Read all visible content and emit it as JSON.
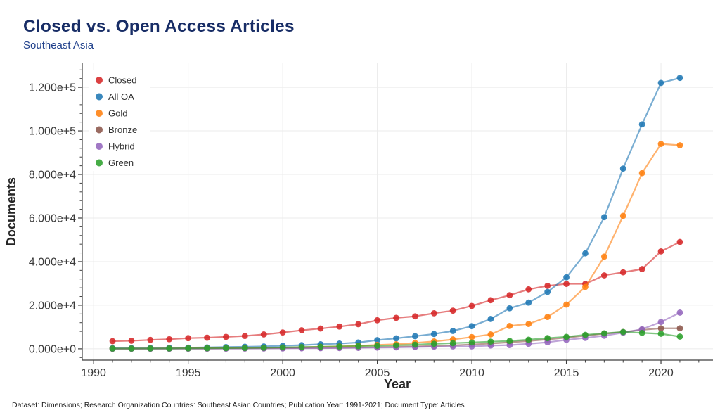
{
  "header": {
    "title": "Closed vs. Open Access Articles",
    "subtitle": "Southeast Asia"
  },
  "footer": {
    "note": "Dataset: Dimensions; Research Organization Countries: Southeast Asian Countries; Publication Year: 1991-2021; Document Type: Articles"
  },
  "colors": {
    "title_text": "#182d66",
    "subtitle_text": "#21418c",
    "grid": "#ebebeb",
    "spine": "#3f3f3f",
    "tick_label": "#3a3a3a",
    "axis_title": "#262626",
    "legend_text": "#333333",
    "background": "#ffffff"
  },
  "chart_data": {
    "type": "line",
    "title": "Closed vs. Open Access Articles",
    "subtitle": "Southeast Asia",
    "xlabel": "Year",
    "ylabel": "Documents",
    "grid": true,
    "legend_position": "top-left",
    "legend_entries": [
      "Closed",
      "All OA",
      "Gold",
      "Bronze",
      "Hybrid",
      "Green"
    ],
    "xlim": [
      1989.4,
      2022.75
    ],
    "ylim": [
      -5200,
      131000
    ],
    "x_ticks": [
      1990,
      1995,
      2000,
      2005,
      2010,
      2015,
      2020
    ],
    "x_tick_labels": [
      "1990",
      "1995",
      "2000",
      "2005",
      "2010",
      "2015",
      "2020"
    ],
    "x_minor_step": 1,
    "y_ticks": [
      0,
      20000,
      40000,
      60000,
      80000,
      100000,
      120000
    ],
    "y_tick_labels": [
      "0.000e+0",
      "2.000e+4",
      "4.000e+4",
      "6.000e+4",
      "8.000e+4",
      "1.000e+5",
      "1.200e+5"
    ],
    "y_minor_step": 4000,
    "x": [
      1991,
      1992,
      1993,
      1994,
      1995,
      1996,
      1997,
      1998,
      1999,
      2000,
      2001,
      2002,
      2003,
      2004,
      2005,
      2006,
      2007,
      2008,
      2009,
      2010,
      2011,
      2012,
      2013,
      2014,
      2015,
      2016,
      2017,
      2018,
      2019,
      2020,
      2021
    ],
    "series": [
      {
        "name": "Closed",
        "color": "#d62728",
        "values": [
          3500,
          3700,
          4100,
          4400,
          4900,
          5100,
          5500,
          5900,
          6600,
          7500,
          8500,
          9300,
          10200,
          11300,
          13100,
          14200,
          14900,
          16300,
          17500,
          19700,
          22300,
          24600,
          27300,
          28900,
          29800,
          29800,
          33700,
          35100,
          36600,
          44700,
          49000
        ]
      },
      {
        "name": "All OA",
        "color": "#1f77b4",
        "values": [
          300,
          350,
          400,
          500,
          550,
          650,
          800,
          950,
          1100,
          1400,
          1700,
          2100,
          2400,
          2900,
          4000,
          4800,
          5800,
          6800,
          8200,
          10400,
          13700,
          18600,
          21200,
          26100,
          32800,
          43800,
          60400,
          82700,
          103000,
          122000,
          124300
        ]
      },
      {
        "name": "Gold",
        "color": "#ff7f0e",
        "values": [
          100,
          120,
          140,
          160,
          200,
          240,
          300,
          360,
          450,
          550,
          700,
          900,
          1100,
          1400,
          1800,
          2100,
          2700,
          3400,
          4300,
          5400,
          6600,
          10500,
          11400,
          14600,
          20300,
          28400,
          42300,
          61000,
          80600,
          94000,
          93400
        ]
      },
      {
        "name": "Bronze",
        "color": "#8c564b",
        "values": [
          60,
          70,
          80,
          90,
          110,
          130,
          150,
          180,
          220,
          280,
          350,
          420,
          500,
          600,
          750,
          900,
          1100,
          1300,
          1600,
          2000,
          2400,
          3000,
          3600,
          4300,
          5100,
          6000,
          6900,
          7700,
          8700,
          9400,
          9400
        ]
      },
      {
        "name": "Hybrid",
        "color": "#9467bd",
        "values": [
          40,
          45,
          50,
          60,
          70,
          80,
          100,
          120,
          150,
          180,
          230,
          280,
          350,
          430,
          550,
          650,
          800,
          950,
          1100,
          1100,
          1500,
          1700,
          2300,
          3000,
          4100,
          5000,
          6000,
          7400,
          9000,
          12300,
          16600
        ]
      },
      {
        "name": "Green",
        "color": "#2ca02c",
        "values": [
          120,
          130,
          150,
          170,
          220,
          260,
          320,
          380,
          480,
          650,
          800,
          950,
          1100,
          1250,
          1400,
          1600,
          1900,
          2300,
          2600,
          2900,
          3300,
          3600,
          4200,
          4900,
          5500,
          6400,
          7100,
          7700,
          7300,
          6900,
          5600
        ]
      }
    ]
  }
}
